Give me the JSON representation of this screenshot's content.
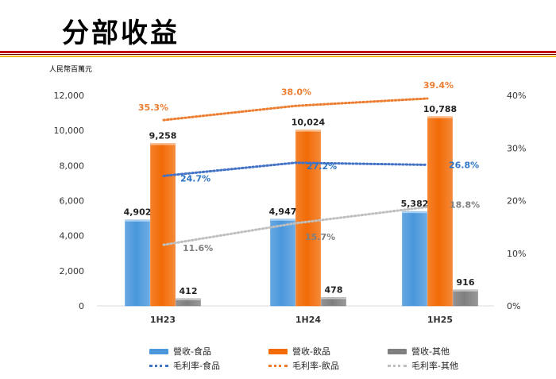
{
  "page": {
    "title": "分部收益",
    "unit": "人民幣百萬元"
  },
  "colors": {
    "food": "#4a97dc",
    "beverage": "#f26b06",
    "other": "#7f7f7f",
    "margin_food": "#4472c4",
    "margin_beverage": "#ed7d31",
    "margin_other": "#bfbfbf",
    "label_food": "#2e75c6",
    "label_beverage": "#ed7d31",
    "label_other": "#7f7f7f"
  },
  "legend": [
    {
      "name": "營收-食品",
      "style": "bar",
      "color_key": "food"
    },
    {
      "name": "營收-飲品",
      "style": "bar",
      "color_key": "beverage"
    },
    {
      "name": "營收-其他",
      "style": "bar",
      "color_key": "other"
    },
    {
      "name": "毛利率-食品",
      "style": "dot",
      "color_key": "margin_food"
    },
    {
      "name": "毛利率-飲品",
      "style": "dot",
      "color_key": "margin_beverage"
    },
    {
      "name": "毛利率-其他",
      "style": "dot",
      "color_key": "margin_other"
    }
  ],
  "chart_data": {
    "type": "bar",
    "categories": [
      "1H23",
      "1H24",
      "1H25"
    ],
    "series": [
      {
        "name": "營收-食品",
        "values": [
          4902,
          4947,
          5382
        ],
        "labels": [
          "4,902",
          "4,947",
          "5,382"
        ]
      },
      {
        "name": "營收-飲品",
        "values": [
          9258,
          10024,
          10788
        ],
        "labels": [
          "9,258",
          "10,024",
          "10,788"
        ]
      },
      {
        "name": "營收-其他",
        "values": [
          412,
          478,
          916
        ],
        "labels": [
          "412",
          "478",
          "916"
        ]
      }
    ],
    "line_series": [
      {
        "name": "毛利率-食品",
        "values": [
          24.7,
          27.2,
          26.8
        ],
        "labels": [
          "24.7%",
          "27.2%",
          "26.8%"
        ]
      },
      {
        "name": "毛利率-飲品",
        "values": [
          35.3,
          38.0,
          39.4
        ],
        "labels": [
          "35.3%",
          "38.0%",
          "39.4%"
        ]
      },
      {
        "name": "毛利率-其他",
        "values": [
          11.6,
          15.7,
          18.8
        ],
        "labels": [
          "11.6%",
          "15.7%",
          "18.8%"
        ]
      }
    ],
    "ylim": [
      0,
      12000
    ],
    "y_ticks": [
      0,
      2000,
      4000,
      6000,
      8000,
      10000,
      12000
    ],
    "y_tick_labels": [
      "0",
      "2,000",
      "4,000",
      "6,000",
      "8,000",
      "10,000",
      "12,000"
    ],
    "y2lim": [
      0,
      40
    ],
    "y2_ticks": [
      0,
      10,
      20,
      30,
      40
    ],
    "y2_tick_labels": [
      "0%",
      "10%",
      "20%",
      "30%",
      "40%"
    ],
    "legend_position": "bottom"
  }
}
